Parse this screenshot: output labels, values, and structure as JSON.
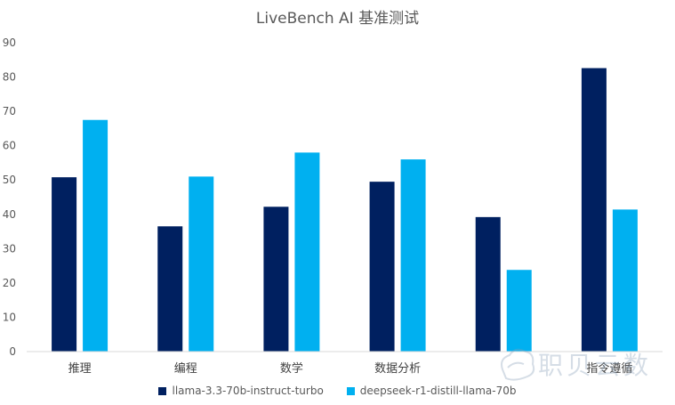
{
  "chart_data": {
    "type": "bar",
    "title": "LiveBench AI 基准测试",
    "categories": [
      "推理",
      "编程",
      "数学",
      "数据分析",
      "",
      "指令遵循"
    ],
    "series": [
      {
        "name": "llama-3.3-70b-instruct-turbo",
        "color": "#002060",
        "values": [
          50.8,
          36.5,
          42.2,
          49.5,
          39.2,
          82.6
        ]
      },
      {
        "name": "deepseek-r1-distill-llama-70b",
        "color": "#00B0F0",
        "values": [
          67.5,
          51.0,
          58.0,
          56.0,
          23.8,
          41.4
        ]
      }
    ],
    "ylim": [
      0,
      90
    ],
    "yticks": [
      0,
      10,
      20,
      30,
      40,
      50,
      60,
      70,
      80,
      90
    ],
    "grid": false,
    "legend_position": "bottom"
  },
  "watermark": {
    "text": "职贝云数"
  }
}
